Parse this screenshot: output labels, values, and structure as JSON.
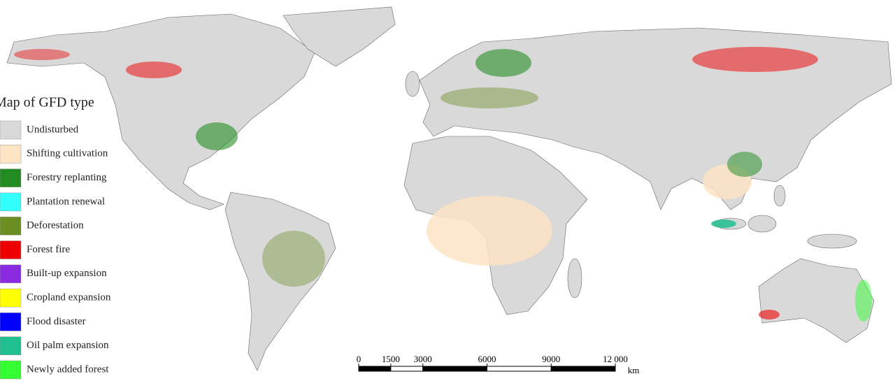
{
  "legend": {
    "title": "Map of GFD type",
    "items": [
      {
        "label": "Undisturbed",
        "color": "#d9d9d9"
      },
      {
        "label": "Shifting cultivation",
        "color": "#fde4c4"
      },
      {
        "label": "Forestry replanting",
        "color": "#228b22"
      },
      {
        "label": "Plantation renewal",
        "color": "#33ffff"
      },
      {
        "label": "Deforestation",
        "color": "#6b8e23"
      },
      {
        "label": "Forest fire",
        "color": "#ee0000"
      },
      {
        "label": "Built-up expansion",
        "color": "#8a2be2"
      },
      {
        "label": "Cropland expansion",
        "color": "#ffff00"
      },
      {
        "label": "Flood disaster",
        "color": "#0000ff"
      },
      {
        "label": "Oil palm expansion",
        "color": "#1fbf8f"
      },
      {
        "label": "Newly added forest",
        "color": "#33ff33"
      }
    ]
  },
  "scale_bar": {
    "ticks": [
      0,
      1500,
      3000,
      6000,
      9000,
      {
        "value": 12000,
        "label": "12 000"
      }
    ],
    "unit": "km"
  }
}
